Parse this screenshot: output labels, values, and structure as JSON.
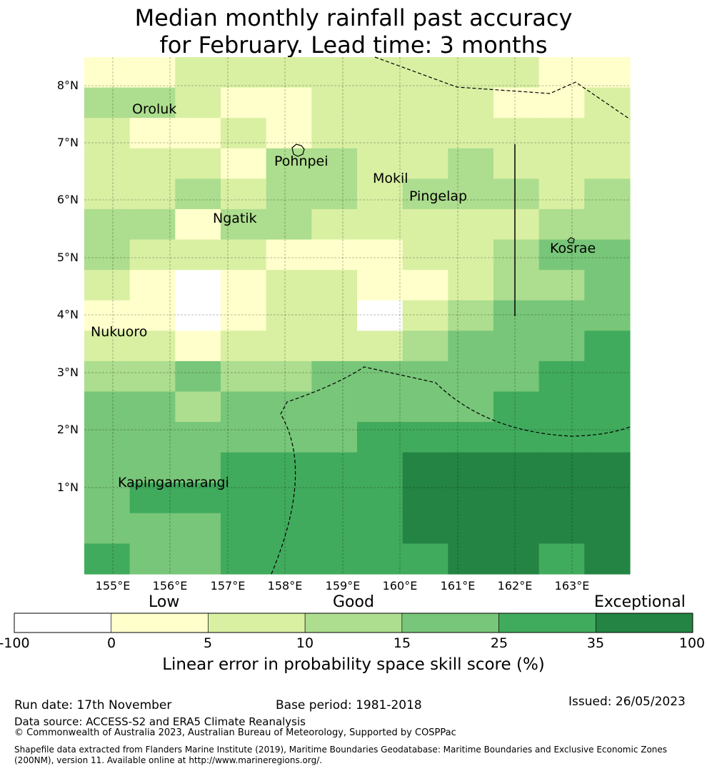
{
  "title": {
    "line1": "Median monthly rainfall past accuracy",
    "line2": "for February. Lead time: 3 months"
  },
  "map": {
    "lon_range": [
      154.5,
      164
    ],
    "lat_range": [
      -0.15,
      8.5
    ],
    "lon_ticks": [
      "155°E",
      "156°E",
      "157°E",
      "158°E",
      "159°E",
      "160°E",
      "161°E",
      "162°E",
      "163°E"
    ],
    "lat_ticks": [
      "8°N",
      "7°N",
      "6°N",
      "5°N",
      "4°N",
      "3°N",
      "2°N",
      "1°N"
    ],
    "colors": [
      "#ffffff",
      "#ffffcc",
      "#d9f0a3",
      "#addd8e",
      "#78c679",
      "#41ab5d",
      "#238443"
    ],
    "grid_cols": 12,
    "grid": [
      [
        1,
        1,
        2,
        2,
        2,
        2,
        2,
        2,
        2,
        2,
        1,
        1
      ],
      [
        3,
        3,
        2,
        1,
        1,
        2,
        2,
        2,
        2,
        1,
        1,
        2
      ],
      [
        2,
        1,
        1,
        2,
        1,
        2,
        2,
        2,
        2,
        2,
        2,
        2
      ],
      [
        2,
        2,
        2,
        1,
        3,
        3,
        2,
        2,
        3,
        2,
        2,
        2
      ],
      [
        2,
        2,
        3,
        2,
        3,
        3,
        2,
        3,
        3,
        3,
        2,
        3
      ],
      [
        3,
        3,
        1,
        3,
        3,
        2,
        2,
        2,
        2,
        2,
        3,
        3
      ],
      [
        3,
        2,
        2,
        2,
        1,
        1,
        1,
        2,
        2,
        3,
        4,
        4
      ],
      [
        2,
        1,
        0,
        1,
        2,
        2,
        1,
        1,
        2,
        3,
        3,
        4
      ],
      [
        1,
        1,
        0,
        1,
        2,
        2,
        0,
        2,
        3,
        4,
        4,
        4
      ],
      [
        2,
        2,
        1,
        2,
        2,
        2,
        2,
        3,
        4,
        4,
        4,
        5
      ],
      [
        3,
        3,
        4,
        3,
        3,
        4,
        4,
        4,
        4,
        4,
        5,
        5
      ],
      [
        4,
        4,
        3,
        4,
        4,
        4,
        4,
        4,
        4,
        5,
        5,
        5
      ],
      [
        4,
        4,
        4,
        4,
        4,
        4,
        5,
        5,
        5,
        5,
        5,
        5
      ],
      [
        4,
        4,
        4,
        5,
        5,
        5,
        5,
        6,
        6,
        6,
        6,
        6
      ],
      [
        4,
        5,
        5,
        5,
        5,
        5,
        5,
        6,
        6,
        6,
        6,
        6
      ],
      [
        4,
        4,
        4,
        5,
        5,
        5,
        5,
        6,
        6,
        6,
        6,
        6
      ],
      [
        5,
        4,
        4,
        5,
        5,
        5,
        5,
        5,
        6,
        6,
        5,
        6
      ]
    ],
    "places": [
      {
        "name": "Oroluk",
        "lon": 155.3,
        "lat": 7.45
      },
      {
        "name": "Pohnpei",
        "lon": 157.9,
        "lat": 6.85
      },
      {
        "name": "Mokil",
        "lon": 159.6,
        "lat": 6.55
      },
      {
        "name": "Pingelap",
        "lon": 160.3,
        "lat": 6.2
      },
      {
        "name": "Ngatik",
        "lon": 157.1,
        "lat": 5.8
      },
      {
        "name": "Kosrae",
        "lon": 162.6,
        "lat": 5.3
      },
      {
        "name": "Nukuoro",
        "lon": 154.6,
        "lat": 3.85
      },
      {
        "name": "Kapingamarangi",
        "lon": 155.1,
        "lat": 1.1
      }
    ]
  },
  "colorbar": {
    "categories": [
      "Low",
      "Good",
      "Exceptional"
    ],
    "ticks": [
      "-100",
      "0",
      "5",
      "10",
      "15",
      "25",
      "35",
      "100"
    ],
    "label": "Linear error in probability space skill score (%)"
  },
  "footer": {
    "run_date": "Run date: 17th November",
    "base_period": "Base period: 1981-2018",
    "issued": "Issued: 26/05/2023",
    "data_source": "Data source: ACCESS-S2 and ERA5 Climate Reanalysis",
    "copyright": "© Commonwealth of Australia 2023, Australian Bureau of Meteorology, Supported by COSPPac",
    "shapefile1": "Shapefile data extracted from Flanders Marine Institute (2019), Maritime Boundaries Geodatabase: Maritime Boundaries and Exclusive Economic Zones",
    "shapefile2": "(200NM), version 11. Available online at http://www.marineregions.org/."
  }
}
